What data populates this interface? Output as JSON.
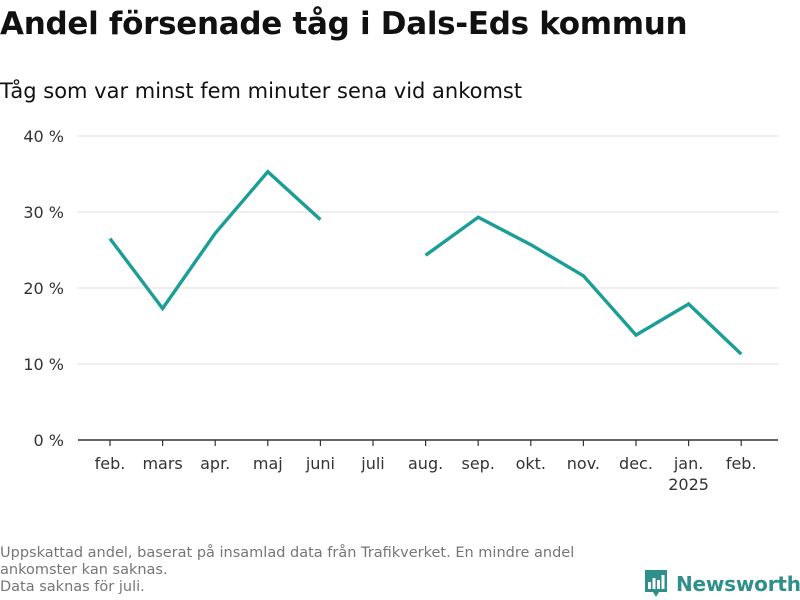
{
  "title": "Andel försenade tåg i Dals-Eds kommun",
  "subtitle": "Tåg som var minst fem minuter sena vid ankomst",
  "footnote": {
    "line1": "Uppskattad andel, baserat på insamlad data från Trafikverket. En mindre andel ankomster kan saknas.",
    "line2": "Data saknas för juli."
  },
  "logo": {
    "text": "Newsworthy"
  },
  "colors": {
    "line": "#1a9e96",
    "grid": "#dddddd",
    "axis": "#333333",
    "brand": "#2f8f8a"
  },
  "chart_data": {
    "type": "line",
    "title": "Andel försenade tåg i Dals-Eds kommun",
    "subtitle": "Tåg som var minst fem minuter sena vid ankomst",
    "categories": [
      "feb.",
      "mars",
      "apr.",
      "maj",
      "juni",
      "juli",
      "aug.",
      "sep.",
      "okt.",
      "nov.",
      "dec.",
      "jan.",
      "feb."
    ],
    "category_sublabels": [
      "",
      "",
      "",
      "",
      "",
      "",
      "",
      "",
      "",
      "",
      "",
      "2025",
      ""
    ],
    "series": [
      {
        "values": [
          26.5,
          17.3,
          27.2,
          35.3,
          29.0,
          null,
          24.3,
          29.3,
          25.7,
          21.6,
          13.8,
          17.9,
          11.3
        ]
      }
    ],
    "ylim": [
      0,
      40
    ],
    "yticks": [
      0,
      10,
      20,
      30,
      40
    ],
    "ytick_labels": [
      "0 %",
      "10 %",
      "20 %",
      "30 %",
      "40 %"
    ],
    "grid": true,
    "legend": "none"
  }
}
